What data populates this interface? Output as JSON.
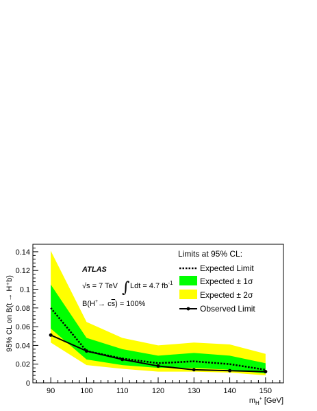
{
  "chart_data": {
    "type": "line",
    "x": [
      90,
      100,
      110,
      120,
      130,
      140,
      150
    ],
    "xticks": [
      "90",
      "100",
      "110",
      "120",
      "130",
      "140",
      "150"
    ],
    "yticks": [
      "0",
      "0.02",
      "0.04",
      "0.06",
      "0.08",
      "0.1",
      "0.12",
      "0.14"
    ],
    "xlim": [
      85,
      155
    ],
    "ylim": [
      0,
      0.148
    ],
    "xlabel_base": "m",
    "xlabel_sub": "H",
    "xlabel_sup": "+",
    "xlabel_unit": "[GeV]",
    "ylabel": "95% CL on B(t → H⁺b)",
    "series": [
      {
        "name": "Expected Limit",
        "values": [
          0.08,
          0.034,
          0.026,
          0.021,
          0.023,
          0.02,
          0.014
        ]
      },
      {
        "name": "Observed Limit",
        "values": [
          0.051,
          0.034,
          0.025,
          0.018,
          0.014,
          0.013,
          0.012
        ]
      }
    ],
    "band_1sigma": {
      "name": "Expected ± 1σ",
      "lower": [
        0.058,
        0.025,
        0.019,
        0.016,
        0.016,
        0.014,
        0.01
      ],
      "upper": [
        0.105,
        0.048,
        0.036,
        0.029,
        0.032,
        0.029,
        0.021
      ],
      "color": "#00ff00"
    },
    "band_2sigma": {
      "name": "Expected ± 2σ",
      "lower": [
        0.043,
        0.019,
        0.015,
        0.012,
        0.012,
        0.011,
        0.008
      ],
      "upper": [
        0.141,
        0.065,
        0.048,
        0.04,
        0.043,
        0.041,
        0.031
      ],
      "color": "#ffff00"
    },
    "legend_title": "Limits at 95% CL:",
    "annotations": {
      "experiment": "ATLAS",
      "energy_prefix": "√s = 7 TeV",
      "integral_sign": "∫",
      "lumi_text": "Ldt = 4.7 fb",
      "lumi_sup": "-1",
      "br_pre": "B(H",
      "br_sup": "+",
      "br_mid": "→ c",
      "br_sbar": "s",
      "br_post": ") = 100%"
    },
    "grid": false,
    "legend_position": "top-right"
  }
}
